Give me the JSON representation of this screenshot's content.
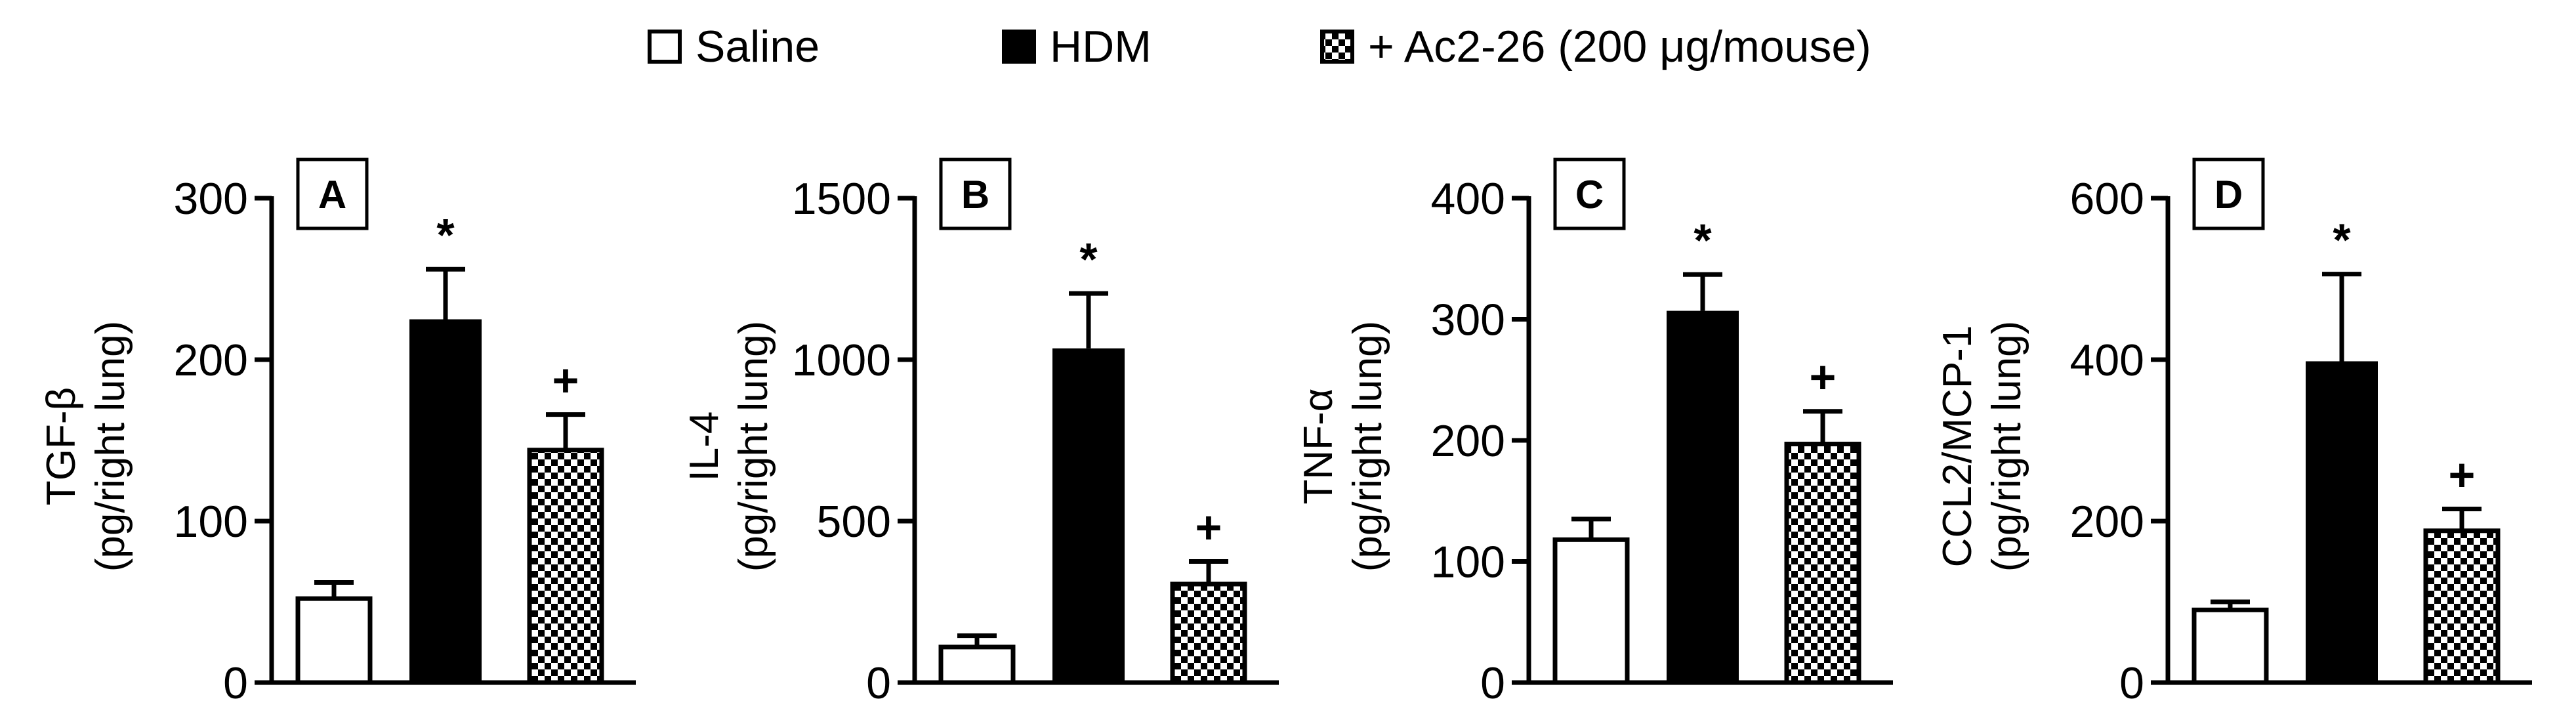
{
  "legend": {
    "entries": [
      {
        "label": "Saline",
        "fill": "white"
      },
      {
        "label": "HDM",
        "fill": "black"
      },
      {
        "label": "+ Ac2-26 (200 μg/mouse)",
        "fill": "checker"
      }
    ]
  },
  "colors": {
    "axis": "#000000",
    "bar_dark": "#000000",
    "bar_light": "#ffffff"
  },
  "chart_data": [
    {
      "type": "bar",
      "panel": "A",
      "ylabel": "TGF-β",
      "ylabel2": "(pg/right lung)",
      "ylim": [
        0,
        300
      ],
      "yticks": [
        0,
        100,
        200,
        300
      ],
      "categories": [
        "Saline",
        "HDM",
        "+ Ac2-26 (200 μg/mouse)"
      ],
      "values": [
        52,
        225,
        144
      ],
      "errors": [
        10,
        31,
        22
      ],
      "marks": [
        "",
        "*",
        "+"
      ]
    },
    {
      "type": "bar",
      "panel": "B",
      "ylabel": "IL-4",
      "ylabel2": "(pg/right lung)",
      "ylim": [
        0,
        1500
      ],
      "yticks": [
        0,
        500,
        1000,
        1500
      ],
      "categories": [
        "Saline",
        "HDM",
        "+ Ac2-26 (200 μg/mouse)"
      ],
      "values": [
        110,
        1035,
        305
      ],
      "errors": [
        35,
        170,
        70
      ],
      "marks": [
        "",
        "*",
        "+"
      ]
    },
    {
      "type": "bar",
      "panel": "C",
      "ylabel": "TNF-α",
      "ylabel2": "(pg/right lung)",
      "ylim": [
        0,
        400
      ],
      "yticks": [
        0,
        100,
        200,
        300,
        400
      ],
      "categories": [
        "Saline",
        "HDM",
        "+ Ac2-26 (200 μg/mouse)"
      ],
      "values": [
        118,
        307,
        197
      ],
      "errors": [
        17,
        30,
        27
      ],
      "marks": [
        "",
        "*",
        "+"
      ]
    },
    {
      "type": "bar",
      "panel": "D",
      "ylabel": "CCL2/MCP-1",
      "ylabel2": "(pg/right lung)",
      "ylim": [
        0,
        600
      ],
      "yticks": [
        0,
        200,
        400,
        600
      ],
      "categories": [
        "Saline",
        "HDM",
        "+ Ac2-26 (200 μg/mouse)"
      ],
      "values": [
        90,
        398,
        188
      ],
      "errors": [
        10,
        108,
        27
      ],
      "marks": [
        "",
        "*",
        "+"
      ]
    }
  ]
}
